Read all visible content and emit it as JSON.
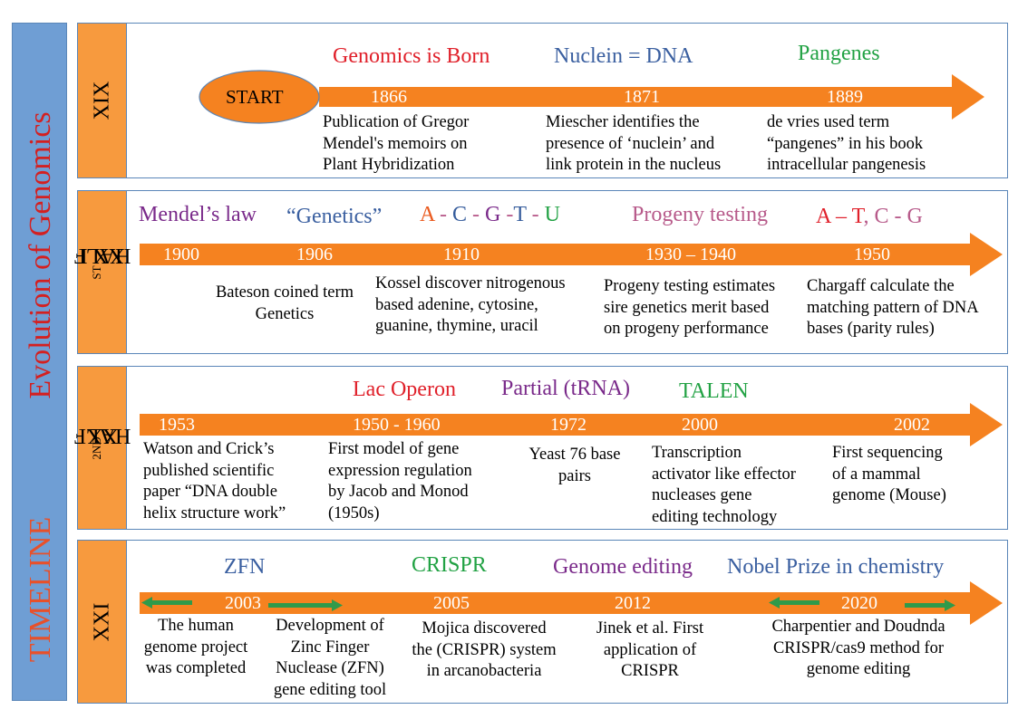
{
  "sidebar": {
    "title1": "TIMELINE",
    "title2": "Evolution of Genomics"
  },
  "rows": {
    "xix": {
      "label": "XIX",
      "start": "START",
      "heads": [
        "Genomics is Born",
        "Nuclein = DNA",
        "Pangenes"
      ],
      "years": [
        "1866",
        "1871",
        "1889"
      ],
      "desc": [
        [
          "Publication of Gregor",
          "Mendel's memoirs on",
          "Plant Hybridization"
        ],
        [
          "Miescher identifies the",
          "presence of ‘nuclein’ and",
          "link protein in the nucleus"
        ],
        [
          "de vries used term",
          "“pangenes” in his book",
          "intracellular pangenesis"
        ]
      ]
    },
    "xx1": {
      "label_main": "XX I",
      "label_sup": "ST",
      "label_tail": " HALF",
      "heads": {
        "mendel": "Mendel’s law",
        "genetics": "“Genetics”",
        "bases1": [
          "A",
          " - ",
          "C",
          " - ",
          "G",
          " -",
          "T",
          " - ",
          "U"
        ],
        "progeny": "Progeny testing",
        "bases2": [
          "A",
          " – ",
          "T",
          ", ",
          "C",
          " - ",
          "G"
        ]
      },
      "years": [
        "1900",
        "1906",
        "1910",
        "1930 – 1940",
        "1950"
      ],
      "desc": [
        [
          "Bateson coined term",
          "Genetics"
        ],
        [
          "Kossel discover nitrogenous",
          "based adenine, cytosine,",
          "guanine, thymine, uracil"
        ],
        [
          "Progeny testing estimates",
          "sire genetics merit based",
          "on progeny performance"
        ],
        [
          "Chargaff calculate the",
          "matching pattern of DNA",
          "bases (parity rules)"
        ]
      ]
    },
    "xx2": {
      "label_main": "XX ",
      "label_sup": "2ND",
      "label_tail": " HALF",
      "heads": [
        "Lac Operon",
        "Partial (tRNA)",
        "TALEN"
      ],
      "years": [
        "1953",
        "1950 - 1960",
        "1972",
        "2000",
        "2002"
      ],
      "desc": [
        [
          "Watson and Crick’s",
          "published scientific",
          "paper “DNA double",
          "helix structure work”"
        ],
        [
          "First model of gene",
          "expression regulation",
          "by Jacob and Monod",
          "(1950s)"
        ],
        [
          "Yeast 76 base",
          "pairs"
        ],
        [
          "Transcription",
          "activator like effector",
          "nucleases gene",
          "editing technology"
        ],
        [
          "First sequencing",
          "of a mammal",
          "genome (Mouse)"
        ]
      ]
    },
    "xxi": {
      "label": "XXI",
      "heads": [
        "ZFN",
        "CRISPR",
        "Genome editing",
        "Nobel Prize in chemistry"
      ],
      "years": [
        "2003",
        "2005",
        "2012",
        "2020"
      ],
      "desc": [
        [
          "The human",
          "genome project",
          "was completed"
        ],
        [
          "Development of",
          "Zinc Finger",
          "Nuclease (ZFN)",
          "gene editing tool"
        ],
        [
          "Mojica discovered",
          "the (CRISPR) system",
          "in arcanobacteria"
        ],
        [
          "Jinek et al. First",
          "application of",
          "CRISPR"
        ],
        [
          "Charpentier and Doudnda",
          "CRISPR/cas9  method for",
          "genome editing"
        ]
      ]
    }
  },
  "colors": {
    "arrow": "#f58220",
    "row_label": "#f79a3e",
    "sidebar": "#6f9ed4",
    "border": "#5a86b8",
    "green_arrow": "#2f9a4a"
  }
}
